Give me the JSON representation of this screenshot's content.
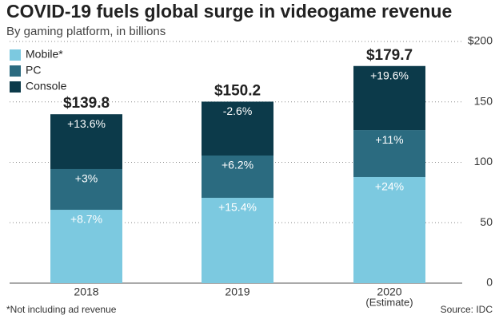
{
  "chart_data": {
    "type": "stacked_bar",
    "title": "COVID-19 fuels global surge in videogame revenue",
    "subtitle": "By gaming platform, in billions",
    "categories": [
      "2018",
      "2019",
      "2020"
    ],
    "x_note": "(Estimate)",
    "series": [
      {
        "name": "Mobile*",
        "color": "#7cc9e0",
        "values": [
          60.7,
          70.6,
          87.8
        ],
        "growth_labels": [
          "+8.7%",
          "+15.4%",
          "+24%"
        ]
      },
      {
        "name": "PC",
        "color": "#2b6b80",
        "values": [
          33.7,
          35.0,
          38.9
        ],
        "growth_labels": [
          "+3%",
          "+6.2%",
          "+11%"
        ]
      },
      {
        "name": "Console",
        "color": "#0c3a4a",
        "values": [
          45.4,
          44.6,
          53.0
        ],
        "growth_labels": [
          "+13.6%",
          "-2.6%",
          "+19.6%"
        ]
      }
    ],
    "totals": [
      139.8,
      150.2,
      179.7
    ],
    "total_labels": [
      "$139.8",
      "$150.2",
      "$179.7"
    ],
    "ylim": [
      0,
      200
    ],
    "yticks": [
      0,
      50,
      100,
      150,
      {
        "value": 200,
        "label": "$200"
      }
    ],
    "grid": true,
    "legend": "top-left",
    "footnote": "*Not including ad revenue",
    "source": "Source: IDC"
  }
}
